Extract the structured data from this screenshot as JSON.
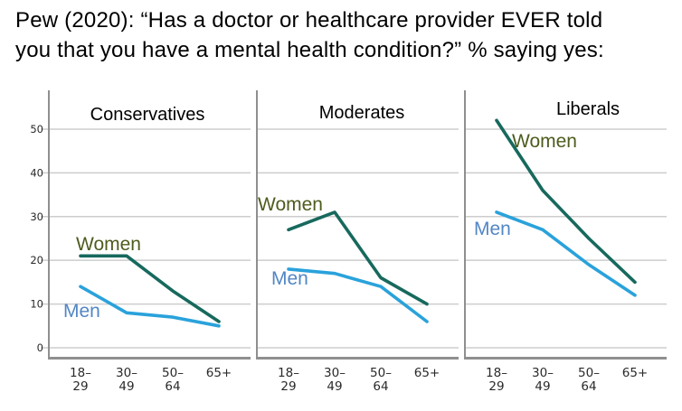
{
  "header": {
    "line1": "Pew (2020): “Has a doctor or healthcare provider EVER told",
    "line2": "you that you have a mental health condition?” % saying yes:"
  },
  "chart_data": {
    "type": "line",
    "title": "Pew (2020): “Has a doctor or healthcare provider EVER told you that you have a mental health condition?” % saying yes:",
    "categories": [
      "18–29",
      "30–49",
      "50–64",
      "65+"
    ],
    "ylim": [
      0,
      55
    ],
    "yticks": [
      0,
      10,
      20,
      30,
      40,
      50
    ],
    "grid": true,
    "legend_position": "inline-labels",
    "panels": [
      {
        "title": "Conservatives",
        "series": [
          {
            "name": "Women",
            "values": [
              21,
              21,
              13,
              6
            ]
          },
          {
            "name": "Men",
            "values": [
              14,
              8,
              7,
              5
            ]
          }
        ]
      },
      {
        "title": "Moderates",
        "series": [
          {
            "name": "Women",
            "values": [
              27,
              31,
              16,
              10
            ]
          },
          {
            "name": "Men",
            "values": [
              18,
              17,
              14,
              6
            ]
          }
        ]
      },
      {
        "title": "Liberals",
        "series": [
          {
            "name": "Women",
            "values": [
              52,
              36,
              25,
              15
            ]
          },
          {
            "name": "Men",
            "values": [
              31,
              27,
              19,
              12
            ]
          }
        ]
      }
    ],
    "colors": {
      "women_line": "#17695d",
      "men_line": "#2aa2db",
      "women_label": "#4d5c1e",
      "men_label": "#5286c5",
      "grid": "#cdcdcd",
      "axis": "#8f8f8f",
      "tick_text": "#2a2a2a",
      "title_text": "#000000"
    }
  }
}
